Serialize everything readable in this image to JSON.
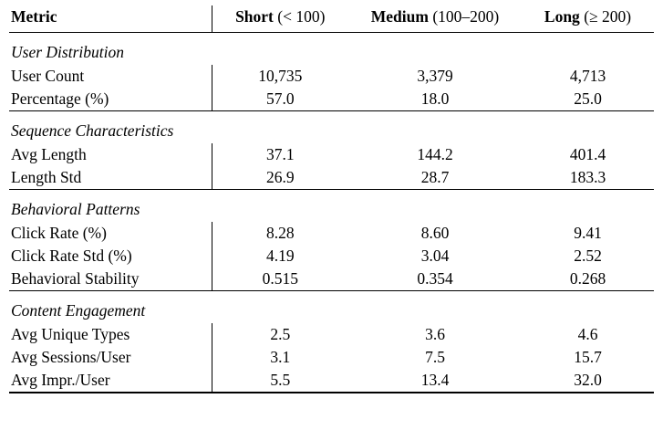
{
  "table": {
    "columns": [
      {
        "label": "Metric",
        "range": ""
      },
      {
        "label": "Short",
        "range": "(< 100)"
      },
      {
        "label": "Medium",
        "range": "(100–200)"
      },
      {
        "label": "Long",
        "range": "(≥ 200)"
      }
    ],
    "sections": [
      {
        "title": "User Distribution",
        "rows": [
          {
            "metric": "User Count",
            "values": [
              "10,735",
              "3,379",
              "4,713"
            ]
          },
          {
            "metric": "Percentage (%)",
            "values": [
              "57.0",
              "18.0",
              "25.0"
            ]
          }
        ]
      },
      {
        "title": "Sequence Characteristics",
        "rows": [
          {
            "metric": "Avg Length",
            "values": [
              "37.1",
              "144.2",
              "401.4"
            ]
          },
          {
            "metric": "Length Std",
            "values": [
              "26.9",
              "28.7",
              "183.3"
            ]
          }
        ]
      },
      {
        "title": "Behavioral Patterns",
        "rows": [
          {
            "metric": "Click Rate (%)",
            "values": [
              "8.28",
              "8.60",
              "9.41"
            ]
          },
          {
            "metric": "Click Rate Std (%)",
            "values": [
              "4.19",
              "3.04",
              "2.52"
            ]
          },
          {
            "metric": "Behavioral Stability",
            "values": [
              "0.515",
              "0.354",
              "0.268"
            ]
          }
        ]
      },
      {
        "title": "Content Engagement",
        "rows": [
          {
            "metric": "Avg Unique Types",
            "values": [
              "2.5",
              "3.6",
              "4.6"
            ]
          },
          {
            "metric": "Avg Sessions/User",
            "values": [
              "3.1",
              "7.5",
              "15.7"
            ]
          },
          {
            "metric": "Avg Impr./User",
            "values": [
              "5.5",
              "13.4",
              "32.0"
            ]
          }
        ]
      }
    ]
  }
}
